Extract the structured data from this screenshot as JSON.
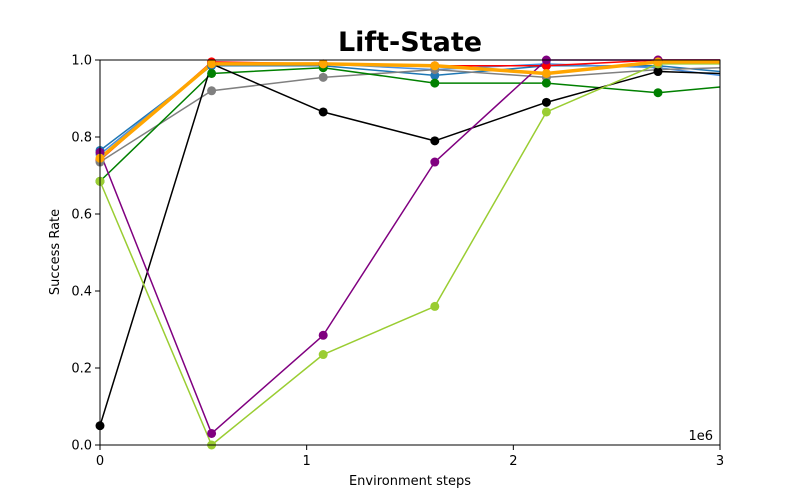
{
  "chart_data": {
    "type": "line",
    "title": "Lift-State",
    "xlabel": "Environment steps",
    "ylabel": "Success Rate",
    "x_offset_label": "1e6",
    "xlim": [
      0,
      3
    ],
    "ylim": [
      0,
      1
    ],
    "xticks": [
      0,
      1,
      2,
      3
    ],
    "xtick_labels": [
      "0",
      "1",
      "2",
      "3"
    ],
    "yticks": [
      0,
      0.2,
      0.4,
      0.6,
      0.8,
      1.0
    ],
    "ytick_labels": [
      "0.0",
      "0.2",
      "0.4",
      "0.6",
      "0.8",
      "1.0"
    ],
    "grid": false,
    "legend": "none",
    "x": [
      0,
      0.54,
      1.08,
      1.62,
      2.16,
      2.7,
      3.0
    ],
    "series": [
      {
        "color": "#1f77b4",
        "linewidth": 1.5,
        "values": [
          0.765,
          0.985,
          0.985,
          0.96,
          0.985,
          0.985,
          0.97
        ]
      },
      {
        "color": "#4a90e2",
        "linewidth": 1.5,
        "values": [
          0.755,
          0.99,
          0.99,
          0.975,
          0.99,
          0.98,
          0.96
        ]
      },
      {
        "color": "#ff0000",
        "linewidth": 1.5,
        "values": [
          0.74,
          0.995,
          0.99,
          0.985,
          0.985,
          1.0,
          1.0
        ]
      },
      {
        "color": "#808080",
        "linewidth": 1.5,
        "values": [
          0.735,
          0.92,
          0.955,
          0.975,
          0.955,
          0.975,
          0.98
        ]
      },
      {
        "color": "#008000",
        "linewidth": 1.5,
        "values": [
          0.685,
          0.965,
          0.98,
          0.94,
          0.94,
          0.915,
          0.93
        ]
      },
      {
        "color": "#000000",
        "linewidth": 1.5,
        "values": [
          0.05,
          0.99,
          0.865,
          0.79,
          0.89,
          0.97,
          0.965
        ]
      },
      {
        "color": "#800080",
        "linewidth": 1.5,
        "values": [
          0.76,
          0.03,
          0.285,
          0.735,
          1.0,
          1.0,
          1.0
        ]
      },
      {
        "color": "#9acd32",
        "linewidth": 1.5,
        "values": [
          0.685,
          0.0,
          0.235,
          0.36,
          0.865,
          0.99,
          0.99
        ]
      },
      {
        "color": "#ffa500",
        "linewidth": 3.5,
        "values": [
          0.745,
          0.99,
          0.99,
          0.985,
          0.965,
          0.995,
          0.995
        ]
      }
    ]
  }
}
